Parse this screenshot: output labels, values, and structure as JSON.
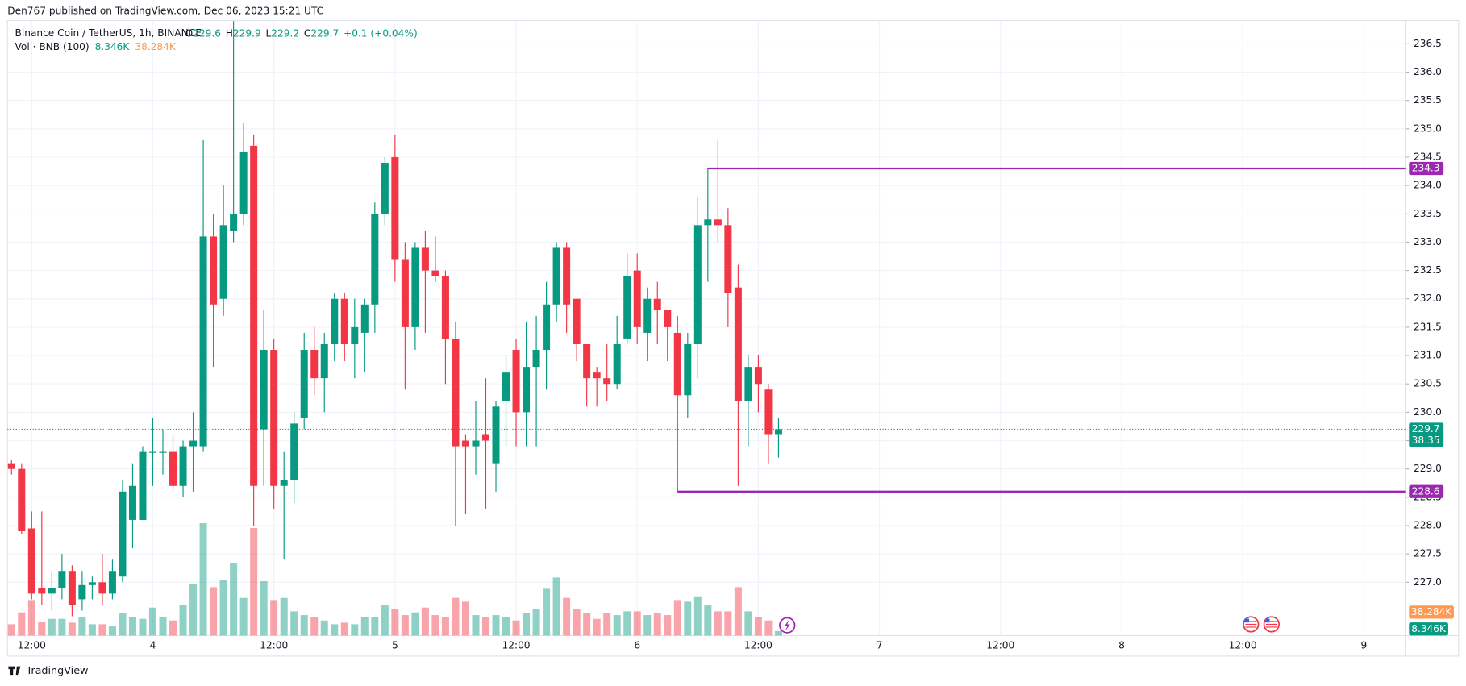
{
  "chart_data": {
    "type": "candlestick",
    "published": "Den767 published on TradingView.com, Dec 06, 2023 15:21 UTC",
    "title": "Binance Coin / TetherUS, 1h, BINANCE",
    "legend": [
      {
        "key": "O",
        "value": 229.6
      },
      {
        "key": "H",
        "value": 229.9
      },
      {
        "key": "L",
        "value": 229.2
      },
      {
        "key": "C",
        "value": 229.7
      }
    ],
    "change": "+0.1 (+0.04%)",
    "countdown": "38:35",
    "brand": "TradingView",
    "up_color": "#089981",
    "down_color": "#f23645",
    "open": [
      229.1,
      229.0,
      227.95,
      226.9,
      226.8,
      226.9,
      227.2,
      226.7,
      226.95,
      227.0,
      226.8,
      227.1,
      228.1,
      228.1,
      229.3,
      229.3,
      229.3,
      228.7,
      229.4,
      229.4,
      233.1,
      232.0,
      233.2,
      233.5,
      234.7,
      229.7,
      231.1,
      228.7,
      228.8,
      229.9,
      231.1,
      230.6,
      231.2,
      232.0,
      231.2,
      231.4,
      231.9,
      233.5,
      234.5,
      232.7,
      231.5,
      232.9,
      232.5,
      232.4,
      231.3,
      229.5,
      229.4,
      229.6,
      229.1,
      230.2,
      231.1,
      230.0,
      230.8,
      231.1,
      231.9,
      232.9,
      232.0,
      231.2,
      230.7,
      230.6,
      230.5,
      231.3,
      232.5,
      231.4,
      232.0,
      231.8,
      231.4,
      230.3,
      231.2,
      233.3,
      233.4,
      233.3,
      232.2,
      230.2,
      230.8,
      230.4,
      229.6
    ],
    "high": [
      229.15,
      229.1,
      228.25,
      228.25,
      227.2,
      227.5,
      227.3,
      227.2,
      227.1,
      227.5,
      227.4,
      228.8,
      229.1,
      229.4,
      229.9,
      229.7,
      229.6,
      229.5,
      230.0,
      234.8,
      233.5,
      234.0,
      236.9,
      235.1,
      234.9,
      231.8,
      231.3,
      229.3,
      230.0,
      231.4,
      231.5,
      231.4,
      232.1,
      232.1,
      232.0,
      232.0,
      233.7,
      234.5,
      234.9,
      233.0,
      233.0,
      233.2,
      233.1,
      232.5,
      231.6,
      229.6,
      230.2,
      230.6,
      230.2,
      231.0,
      231.3,
      231.6,
      231.7,
      232.3,
      233.0,
      233.0,
      232.0,
      231.2,
      230.8,
      231.2,
      231.7,
      232.8,
      232.8,
      232.2,
      232.3,
      231.8,
      231.7,
      231.4,
      233.8,
      234.3,
      234.8,
      233.6,
      232.6,
      231.0,
      231.0,
      230.5,
      229.9
    ],
    "low": [
      228.9,
      227.85,
      226.7,
      226.6,
      226.5,
      226.7,
      226.4,
      226.5,
      226.7,
      226.6,
      226.7,
      227.0,
      227.6,
      228.1,
      228.7,
      228.9,
      228.6,
      228.5,
      228.6,
      229.3,
      230.8,
      231.7,
      233.0,
      233.3,
      228.0,
      228.7,
      228.3,
      227.4,
      228.4,
      229.7,
      230.3,
      230.0,
      230.9,
      230.9,
      230.6,
      230.7,
      231.4,
      233.3,
      232.3,
      230.4,
      231.1,
      231.4,
      232.3,
      230.5,
      228.0,
      228.2,
      228.9,
      228.3,
      228.6,
      229.4,
      229.4,
      229.4,
      229.4,
      230.4,
      231.6,
      231.4,
      230.9,
      230.1,
      230.1,
      230.2,
      230.4,
      231.2,
      231.2,
      230.9,
      231.2,
      230.9,
      228.6,
      229.9,
      230.6,
      232.3,
      233.0,
      231.5,
      228.7,
      229.4,
      230.0,
      229.1,
      229.2
    ],
    "close": [
      229.0,
      227.9,
      226.8,
      226.8,
      226.9,
      227.2,
      226.6,
      226.95,
      227.0,
      226.8,
      227.2,
      228.6,
      228.7,
      229.3,
      229.3,
      229.3,
      228.7,
      229.4,
      229.5,
      233.1,
      231.9,
      233.3,
      233.5,
      234.6,
      228.7,
      231.1,
      228.7,
      228.8,
      229.8,
      231.1,
      230.6,
      231.2,
      232.0,
      231.2,
      231.5,
      231.9,
      233.5,
      234.4,
      232.7,
      231.5,
      232.9,
      232.5,
      232.4,
      231.3,
      229.4,
      229.4,
      229.5,
      229.5,
      230.1,
      230.7,
      230.0,
      230.8,
      231.1,
      231.9,
      232.9,
      231.9,
      231.2,
      230.6,
      230.6,
      230.5,
      231.2,
      232.4,
      231.5,
      232.0,
      231.8,
      231.5,
      230.3,
      231.2,
      233.3,
      233.4,
      233.3,
      232.1,
      230.2,
      230.8,
      230.5,
      229.6,
      229.7
    ],
    "volume": {
      "name": "Vol · BNB (100)",
      "values": [
        21,
        43,
        66,
        26,
        31,
        31,
        24,
        35,
        21,
        21,
        17,
        42,
        35,
        31,
        52,
        35,
        28,
        56,
        96,
        209,
        90,
        104,
        134,
        70,
        200,
        101,
        66,
        70,
        45,
        38,
        35,
        28,
        21,
        24,
        21,
        35,
        35,
        56,
        49,
        38,
        43,
        52,
        38,
        35,
        70,
        63,
        38,
        35,
        38,
        35,
        28,
        42,
        49,
        87,
        108,
        70,
        49,
        42,
        31,
        42,
        38,
        45,
        45,
        38,
        42,
        38,
        66,
        63,
        73,
        56,
        45,
        45,
        90,
        45,
        35,
        28,
        8.346
      ],
      "last_label": "8.346K",
      "ma": 38.284,
      "ma_label": "38.284K",
      "ma_color": "#ff9850",
      "ylim": [
        0,
        1144
      ]
    },
    "hlines": [
      {
        "value": 234.3,
        "color": "#9c27b0"
      },
      {
        "value": 228.6,
        "color": "#9c27b0"
      }
    ],
    "xlim": [
      -0.4,
      138.1
    ],
    "xticks": [
      {
        "value": 2,
        "label": "12:00"
      },
      {
        "value": 14,
        "label": "4"
      },
      {
        "value": 26,
        "label": "12:00"
      },
      {
        "value": 38,
        "label": "5"
      },
      {
        "value": 50,
        "label": "12:00"
      },
      {
        "value": 62,
        "label": "6"
      },
      {
        "value": 74,
        "label": "12:00"
      },
      {
        "value": 86,
        "label": "7"
      },
      {
        "value": 98,
        "label": "12:00"
      },
      {
        "value": 110,
        "label": "8"
      },
      {
        "value": 122,
        "label": "12:00"
      },
      {
        "value": 134,
        "label": "9"
      }
    ],
    "ylim": [
      226.06,
      236.91
    ],
    "yticks": [
      {
        "value": 227,
        "label": "227.0"
      },
      227.5,
      {
        "value": 228,
        "label": "228.0"
      },
      228.5,
      {
        "value": 229,
        "label": "229.0"
      },
      229.5,
      {
        "value": 230,
        "label": "230.0"
      },
      230.5,
      {
        "value": 231,
        "label": "231.0"
      },
      231.5,
      {
        "value": 232,
        "label": "232.0"
      },
      232.5,
      {
        "value": 233,
        "label": "233.0"
      },
      233.5,
      {
        "value": 234,
        "label": "234.0"
      },
      234.5,
      {
        "value": 235,
        "label": "235.0"
      },
      235.5,
      {
        "value": 236,
        "label": "236.0"
      },
      236.5
    ],
    "grid": true
  }
}
